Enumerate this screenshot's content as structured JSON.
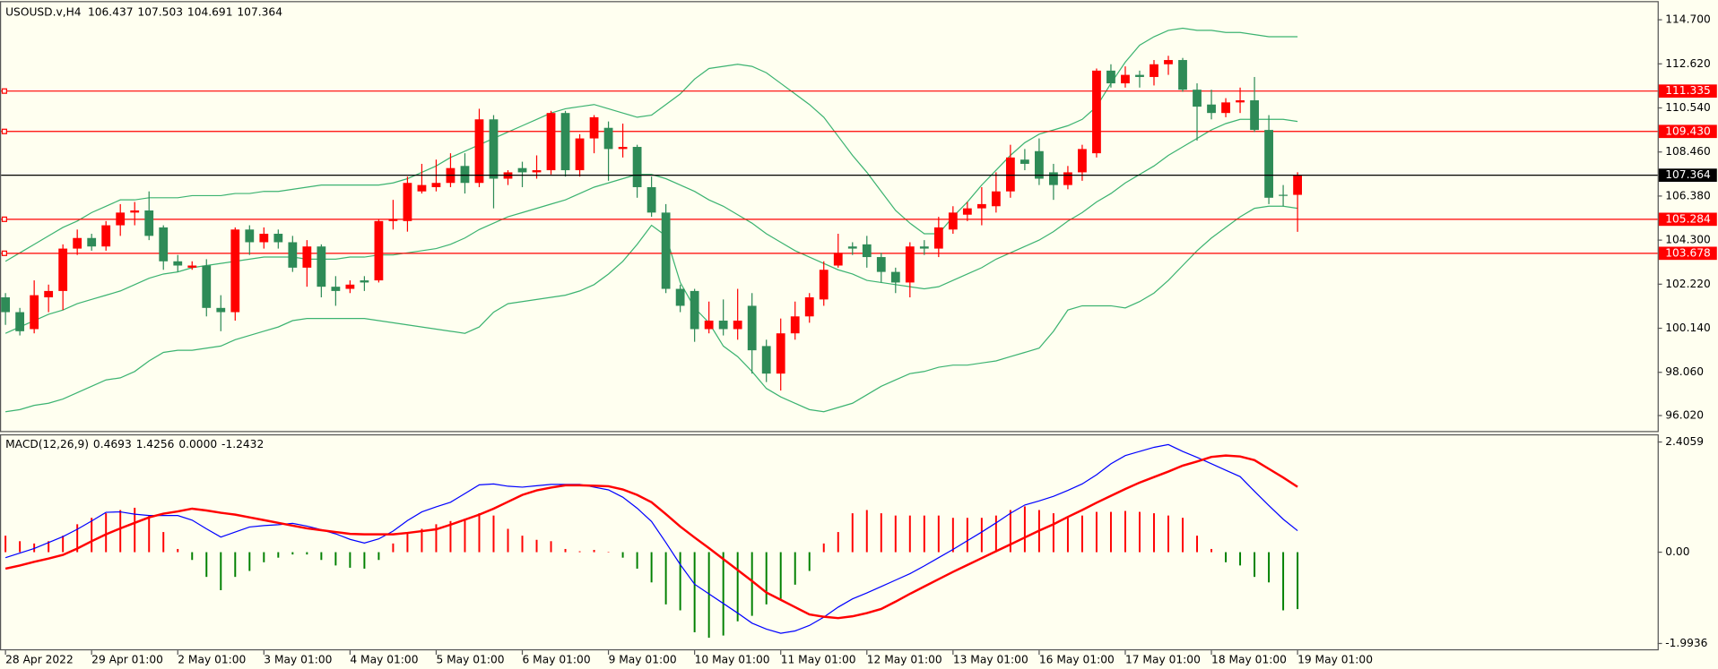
{
  "chart_data": [
    {
      "type": "candlestick",
      "title": "USOUSD.v,H4",
      "categories": [
        "28 Apr 2022",
        null,
        null,
        null,
        null,
        null,
        "29 Apr 01:00",
        null,
        null,
        null,
        null,
        null,
        "2 May 01:00",
        null,
        null,
        null,
        null,
        null,
        "3 May 01:00",
        null,
        null,
        null,
        null,
        null,
        "4 May 01:00",
        null,
        null,
        null,
        null,
        null,
        "5 May 01:00",
        null,
        null,
        null,
        null,
        null,
        "6 May 01:00",
        null,
        null,
        null,
        null,
        null,
        "9 May 01:00",
        null,
        null,
        null,
        null,
        null,
        "10 May 01:00",
        null,
        null,
        null,
        null,
        null,
        "11 May 01:00",
        null,
        null,
        null,
        null,
        null,
        "12 May 01:00",
        null,
        null,
        null,
        null,
        null,
        "13 May 01:00",
        null,
        null,
        null,
        null,
        null,
        "16 May 01:00",
        null,
        null,
        null,
        null,
        null,
        "17 May 01:00",
        null,
        null,
        null,
        null,
        null,
        "18 May 01:00",
        null,
        null,
        null,
        null,
        null,
        "19 May 01:00"
      ],
      "open": [
        101.6,
        100.9,
        100.1,
        101.6,
        101.9,
        103.9,
        104.4,
        104.0,
        105.0,
        105.6,
        105.7,
        104.9,
        103.3,
        103.0,
        103.1,
        101.1,
        100.9,
        104.8,
        104.2,
        104.6,
        104.2,
        103.0,
        104.0,
        102.1,
        102.0,
        102.4,
        102.4,
        105.2,
        105.2,
        106.6,
        106.8,
        107.0,
        107.8,
        107.0,
        110.0,
        107.2,
        107.7,
        107.5,
        107.6,
        110.3,
        107.6,
        109.1,
        109.6,
        108.6,
        108.7,
        106.8,
        105.6,
        102.0,
        101.9,
        100.1,
        100.5,
        100.1,
        101.2,
        99.3,
        98.0,
        99.9,
        100.7,
        101.5,
        103.1,
        104.0,
        104.1,
        103.5,
        102.8,
        102.3,
        104.0,
        103.9,
        104.8,
        105.5,
        105.8,
        105.9,
        106.6,
        108.1,
        108.5,
        107.5,
        106.9,
        107.5,
        108.4,
        112.3,
        111.7,
        112.1,
        112.0,
        112.6,
        112.8,
        111.4,
        110.7,
        110.3,
        110.8,
        110.9,
        109.5,
        106.44,
        106.437
      ],
      "high": [
        101.8,
        101.1,
        102.4,
        102.2,
        104.1,
        104.8,
        104.6,
        105.2,
        106.0,
        106.1,
        106.6,
        105.0,
        103.6,
        103.3,
        103.4,
        101.7,
        104.9,
        105.0,
        104.9,
        104.8,
        104.5,
        104.3,
        104.1,
        102.6,
        102.4,
        102.6,
        105.3,
        106.2,
        107.3,
        107.9,
        108.1,
        108.4,
        108.4,
        110.5,
        110.2,
        107.6,
        108.0,
        108.3,
        110.4,
        110.4,
        109.3,
        110.2,
        109.9,
        109.8,
        108.8,
        107.3,
        106.0,
        102.2,
        102.0,
        101.4,
        101.5,
        102.0,
        101.8,
        99.6,
        100.6,
        101.4,
        101.8,
        103.3,
        104.6,
        104.2,
        104.5,
        103.7,
        103.0,
        104.2,
        104.3,
        105.4,
        105.9,
        106.1,
        106.8,
        107.5,
        108.8,
        108.6,
        109.1,
        107.9,
        107.8,
        108.8,
        112.4,
        112.6,
        112.5,
        112.3,
        112.8,
        113.0,
        112.9,
        111.7,
        111.4,
        111.0,
        111.5,
        112.0,
        110.2,
        106.9,
        107.503
      ],
      "low": [
        100.3,
        99.8,
        99.9,
        100.9,
        101.0,
        103.6,
        103.8,
        103.8,
        104.5,
        105.0,
        104.3,
        102.9,
        102.8,
        102.9,
        100.7,
        100.0,
        100.5,
        103.6,
        103.9,
        103.9,
        102.8,
        102.1,
        101.6,
        101.2,
        101.8,
        101.9,
        102.3,
        104.8,
        104.7,
        106.5,
        106.6,
        106.8,
        106.5,
        106.8,
        105.8,
        106.9,
        106.8,
        107.2,
        107.4,
        107.3,
        107.3,
        108.4,
        107.1,
        108.2,
        106.3,
        105.4,
        101.8,
        100.9,
        99.5,
        99.9,
        99.8,
        99.6,
        98.0,
        97.6,
        97.2,
        99.6,
        100.4,
        101.2,
        103.0,
        103.6,
        103.0,
        102.3,
        101.8,
        101.6,
        103.6,
        103.5,
        104.6,
        105.2,
        105.0,
        105.6,
        106.3,
        107.6,
        106.9,
        106.2,
        106.7,
        107.1,
        108.2,
        111.5,
        111.5,
        111.5,
        111.6,
        112.1,
        111.3,
        109.0,
        110.0,
        110.1,
        110.3,
        109.4,
        106.0,
        105.9,
        104.691
      ],
      "close": [
        100.9,
        100.0,
        101.7,
        101.9,
        103.9,
        104.4,
        104.0,
        105.0,
        105.6,
        105.7,
        104.5,
        103.3,
        103.1,
        103.1,
        101.1,
        100.9,
        104.8,
        104.2,
        104.6,
        104.2,
        103.0,
        104.0,
        102.1,
        101.9,
        102.2,
        102.3,
        105.2,
        105.3,
        107.0,
        106.9,
        107.0,
        107.7,
        107.0,
        110.0,
        107.2,
        107.5,
        107.5,
        107.6,
        110.3,
        107.6,
        109.1,
        110.1,
        108.6,
        108.7,
        106.8,
        105.6,
        102.0,
        101.2,
        100.1,
        100.5,
        100.1,
        100.5,
        99.1,
        98.0,
        99.9,
        100.7,
        101.6,
        102.9,
        103.7,
        103.9,
        103.5,
        102.8,
        102.3,
        104.0,
        103.9,
        104.9,
        105.6,
        105.8,
        106.0,
        106.6,
        108.2,
        107.9,
        107.2,
        106.9,
        107.5,
        108.6,
        112.3,
        111.7,
        112.1,
        112.0,
        112.6,
        112.8,
        111.4,
        110.6,
        110.3,
        110.8,
        110.9,
        109.5,
        106.3,
        106.4,
        107.364
      ],
      "up_color": "#ff0000",
      "down_color": "#2e8b57",
      "series": [
        {
          "color": "#3cb371",
          "values": [
            103.3,
            103.7,
            104.1,
            104.5,
            104.9,
            105.2,
            105.6,
            105.9,
            106.2,
            106.2,
            106.3,
            106.3,
            106.3,
            106.4,
            106.4,
            106.4,
            106.5,
            106.5,
            106.6,
            106.6,
            106.7,
            106.8,
            106.9,
            106.9,
            106.9,
            106.9,
            106.9,
            107.0,
            107.2,
            107.5,
            107.8,
            108.2,
            108.5,
            108.8,
            109.1,
            109.4,
            109.7,
            110.0,
            110.3,
            110.5,
            110.6,
            110.7,
            110.5,
            110.3,
            110.1,
            110.2,
            110.7,
            111.2,
            111.9,
            112.4,
            112.5,
            112.6,
            112.5,
            112.2,
            111.7,
            111.2,
            110.7,
            110.1,
            109.2,
            108.3,
            107.5,
            106.6,
            105.7,
            105.1,
            104.6,
            104.6,
            105.4,
            106.1,
            106.9,
            107.6,
            108.3,
            108.9,
            109.3,
            109.5,
            109.7,
            110.0,
            110.6,
            111.7,
            112.7,
            113.5,
            113.9,
            114.2,
            114.3,
            114.2,
            114.2,
            114.1,
            114.1,
            114.0,
            113.9,
            113.9,
            113.9
          ]
        },
        {
          "color": "#3cb371",
          "values": [
            99.9,
            100.2,
            100.5,
            100.8,
            101.0,
            101.3,
            101.5,
            101.7,
            101.9,
            102.2,
            102.5,
            102.7,
            102.8,
            103.0,
            103.1,
            103.2,
            103.3,
            103.4,
            103.5,
            103.5,
            103.5,
            103.4,
            103.4,
            103.4,
            103.5,
            103.5,
            103.6,
            103.6,
            103.7,
            103.8,
            103.9,
            104.1,
            104.4,
            104.8,
            105.1,
            105.4,
            105.6,
            105.8,
            106.0,
            106.2,
            106.5,
            106.8,
            107.0,
            107.2,
            107.4,
            107.4,
            107.2,
            106.9,
            106.6,
            106.2,
            105.9,
            105.5,
            105.1,
            104.6,
            104.2,
            103.8,
            103.5,
            103.2,
            102.9,
            102.7,
            102.4,
            102.3,
            102.2,
            102.1,
            102.0,
            102.1,
            102.4,
            102.7,
            103.0,
            103.4,
            103.7,
            104.0,
            104.3,
            104.7,
            105.2,
            105.6,
            106.1,
            106.5,
            107.0,
            107.4,
            107.8,
            108.3,
            108.7,
            109.1,
            109.5,
            109.8,
            110.0,
            110.0,
            110.0,
            110.0,
            109.9
          ]
        },
        {
          "color": "#3cb371",
          "values": [
            96.2,
            96.3,
            96.5,
            96.6,
            96.8,
            97.1,
            97.4,
            97.7,
            97.8,
            98.1,
            98.6,
            99.0,
            99.1,
            99.1,
            99.2,
            99.3,
            99.6,
            99.8,
            100.0,
            100.2,
            100.5,
            100.6,
            100.6,
            100.6,
            100.6,
            100.6,
            100.5,
            100.4,
            100.3,
            100.2,
            100.1,
            100.0,
            99.9,
            100.2,
            100.9,
            101.3,
            101.4,
            101.5,
            101.6,
            101.7,
            101.9,
            102.2,
            102.7,
            103.3,
            104.1,
            105.0,
            104.5,
            102.3,
            101.1,
            100.4,
            99.3,
            98.8,
            98.1,
            97.3,
            96.9,
            96.6,
            96.3,
            96.2,
            96.4,
            96.6,
            97.0,
            97.4,
            97.7,
            98.0,
            98.1,
            98.3,
            98.4,
            98.4,
            98.5,
            98.6,
            98.8,
            99.0,
            99.2,
            100.0,
            101.0,
            101.2,
            101.2,
            101.2,
            101.1,
            101.4,
            101.8,
            102.4,
            103.1,
            103.8,
            104.4,
            104.9,
            105.4,
            105.8,
            105.9,
            105.9,
            105.8
          ]
        }
      ],
      "levels": [
        111.335,
        {
          "value": 109.43,
          "label": "109.430"
        },
        105.284,
        103.678
      ],
      "level_color": "#ff0000",
      "ylim": [
        95.29,
        115.53
      ],
      "yticks": [
        {
          "value": 114.7,
          "label": "114.700"
        },
        {
          "value": 112.62,
          "label": "112.620"
        },
        {
          "value": 110.54,
          "label": "110.540"
        },
        {
          "value": 108.46,
          "label": "108.460"
        },
        {
          "value": 106.38,
          "label": "106.380"
        },
        {
          "value": 104.3,
          "label": "104.300"
        },
        {
          "value": 102.22,
          "label": "102.220"
        },
        {
          "value": 100.14,
          "label": "100.140"
        },
        {
          "value": 98.06,
          "label": "98.060"
        },
        {
          "value": 96.02,
          "label": "96.020"
        }
      ]
    },
    {
      "type": "macd",
      "title": "MACD(12,26,9)",
      "series": [
        {
          "color": "#0000ff",
          "values": [
            -0.12,
            -0.02,
            0.08,
            0.21,
            0.34,
            0.5,
            0.68,
            0.87,
            0.88,
            0.83,
            0.8,
            0.8,
            0.8,
            0.7,
            0.51,
            0.33,
            0.44,
            0.55,
            0.58,
            0.6,
            0.63,
            0.57,
            0.49,
            0.4,
            0.28,
            0.2,
            0.29,
            0.46,
            0.69,
            0.88,
            0.99,
            1.09,
            1.28,
            1.47,
            1.49,
            1.44,
            1.42,
            1.45,
            1.48,
            1.48,
            1.48,
            1.42,
            1.36,
            1.2,
            0.96,
            0.67,
            0.21,
            -0.27,
            -0.7,
            -0.91,
            -1.12,
            -1.33,
            -1.55,
            -1.68,
            -1.77,
            -1.72,
            -1.6,
            -1.42,
            -1.2,
            -1.02,
            -0.89,
            -0.75,
            -0.61,
            -0.47,
            -0.3,
            -0.12,
            0.06,
            0.25,
            0.44,
            0.64,
            0.85,
            1.03,
            1.12,
            1.22,
            1.35,
            1.49,
            1.69,
            1.93,
            2.11,
            2.2,
            2.29,
            2.35,
            2.2,
            2.07,
            1.93,
            1.79,
            1.65,
            1.33,
            1.02,
            0.72,
            0.4693
          ]
        },
        {
          "color": "#ff0000",
          "values": [
            -0.36,
            -0.29,
            -0.21,
            -0.14,
            -0.06,
            0.08,
            0.24,
            0.39,
            0.52,
            0.64,
            0.76,
            0.84,
            0.89,
            0.95,
            0.91,
            0.86,
            0.82,
            0.76,
            0.7,
            0.64,
            0.58,
            0.52,
            0.48,
            0.44,
            0.4,
            0.39,
            0.39,
            0.39,
            0.42,
            0.46,
            0.5,
            0.6,
            0.71,
            0.82,
            0.95,
            1.1,
            1.25,
            1.35,
            1.41,
            1.46,
            1.46,
            1.45,
            1.44,
            1.37,
            1.25,
            1.09,
            0.83,
            0.56,
            0.32,
            0.09,
            -0.15,
            -0.39,
            -0.63,
            -0.88,
            -1.04,
            -1.2,
            -1.36,
            -1.41,
            -1.44,
            -1.4,
            -1.33,
            -1.24,
            -1.08,
            -0.91,
            -0.75,
            -0.59,
            -0.43,
            -0.28,
            -0.13,
            0.02,
            0.17,
            0.32,
            0.47,
            0.61,
            0.77,
            0.92,
            1.08,
            1.23,
            1.38,
            1.52,
            1.64,
            1.76,
            1.89,
            1.98,
            2.08,
            2.11,
            2.09,
            2.01,
            1.82,
            1.63,
            1.4256
          ]
        }
      ],
      "histogram": {
        "up_color": "#ff0000",
        "down_color": "#008000",
        "values": [
          0.36,
          0.24,
          0.19,
          0.24,
          0.36,
          0.61,
          0.75,
          0.85,
          0.92,
          0.97,
          0.8,
          0.44,
          0.07,
          -0.17,
          -0.54,
          -0.83,
          -0.54,
          -0.41,
          -0.22,
          -0.12,
          -0.05,
          -0.05,
          -0.17,
          -0.29,
          -0.34,
          -0.36,
          -0.17,
          0.19,
          0.44,
          0.51,
          0.61,
          0.68,
          0.73,
          0.85,
          0.8,
          0.51,
          0.36,
          0.27,
          0.24,
          0.07,
          0.02,
          0.05,
          0.01,
          -0.12,
          -0.36,
          -0.66,
          -1.14,
          -1.27,
          -1.75,
          -1.87,
          -1.82,
          -1.51,
          -1.39,
          -1.14,
          -1.02,
          -0.71,
          -0.41,
          0.19,
          0.44,
          0.85,
          0.92,
          0.85,
          0.8,
          0.8,
          0.8,
          0.8,
          0.75,
          0.75,
          0.75,
          0.8,
          0.92,
          1.0,
          0.92,
          0.85,
          0.75,
          0.8,
          0.88,
          0.88,
          0.9,
          0.88,
          0.85,
          0.8,
          0.75,
          0.36,
          0.07,
          -0.22,
          -0.29,
          -0.54,
          -0.66,
          -1.27,
          -1.2432
        ]
      },
      "status_value": {
        "value": 0,
        "label": "0.0000"
      },
      "ylim": [
        -2.12,
        2.55
      ],
      "yticks": [
        2.4059,
        {
          "value": 0,
          "label": "0.00"
        },
        -1.9936
      ]
    }
  ]
}
